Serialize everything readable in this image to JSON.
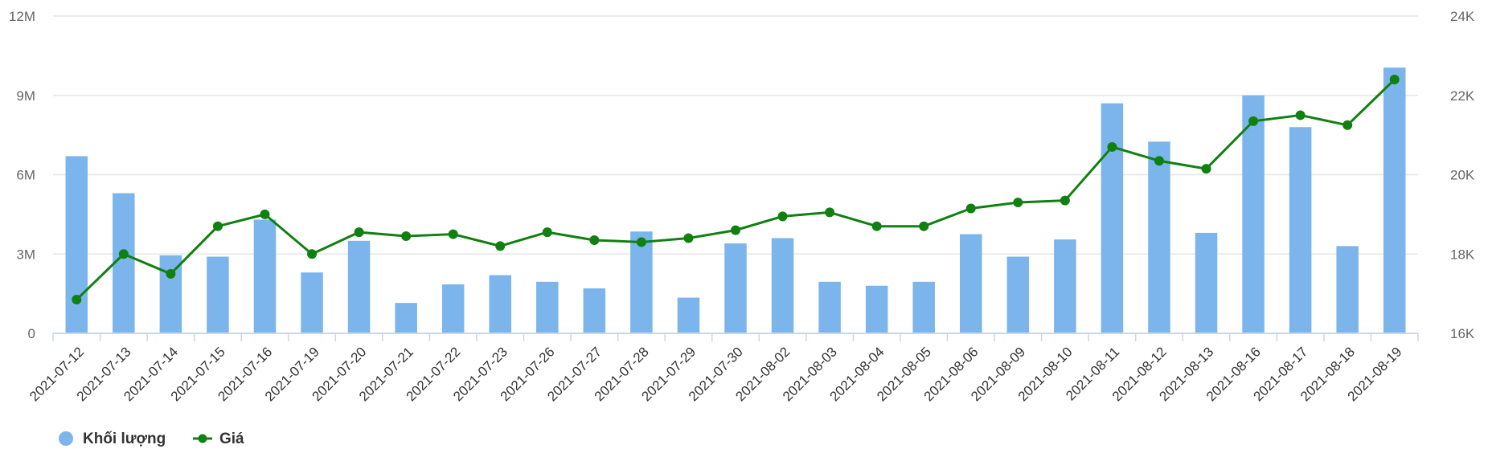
{
  "chart_data": {
    "type": "bar+line",
    "categories": [
      "2021-07-12",
      "2021-07-13",
      "2021-07-14",
      "2021-07-15",
      "2021-07-16",
      "2021-07-19",
      "2021-07-20",
      "2021-07-21",
      "2021-07-22",
      "2021-07-23",
      "2021-07-26",
      "2021-07-27",
      "2021-07-28",
      "2021-07-29",
      "2021-07-30",
      "2021-08-02",
      "2021-08-03",
      "2021-08-04",
      "2021-08-05",
      "2021-08-06",
      "2021-08-09",
      "2021-08-10",
      "2021-08-11",
      "2021-08-12",
      "2021-08-13",
      "2021-08-16",
      "2021-08-17",
      "2021-08-18",
      "2021-08-19"
    ],
    "series": [
      {
        "name": "Khối lượng",
        "type": "bar",
        "axis": "left",
        "color": "#7cb5ec",
        "values": [
          6700000,
          5300000,
          2950000,
          2900000,
          4300000,
          2300000,
          3500000,
          1150000,
          1850000,
          2200000,
          1950000,
          1700000,
          3850000,
          1350000,
          3400000,
          3600000,
          1950000,
          1800000,
          1950000,
          3750000,
          2900000,
          3550000,
          8700000,
          7250000,
          3800000,
          9000000,
          7800000,
          3300000,
          10050000
        ]
      },
      {
        "name": "Giá",
        "type": "line",
        "axis": "right",
        "color": "#108010",
        "values": [
          16850,
          18000,
          17500,
          18700,
          19000,
          18000,
          18550,
          18450,
          18500,
          18200,
          18550,
          18350,
          18300,
          18400,
          18600,
          18950,
          19050,
          18700,
          18700,
          19150,
          19300,
          19350,
          20700,
          20350,
          20150,
          21350,
          21500,
          21250,
          22400
        ]
      }
    ],
    "y_left": {
      "ticks": [
        "0",
        "3M",
        "6M",
        "9M",
        "12M"
      ],
      "min": 0,
      "max": 12000000
    },
    "y_right": {
      "ticks": [
        "16K",
        "18K",
        "20K",
        "22K",
        "24K"
      ],
      "min": 16000,
      "max": 24000
    },
    "grid": true,
    "legend_position": "bottom-left"
  }
}
